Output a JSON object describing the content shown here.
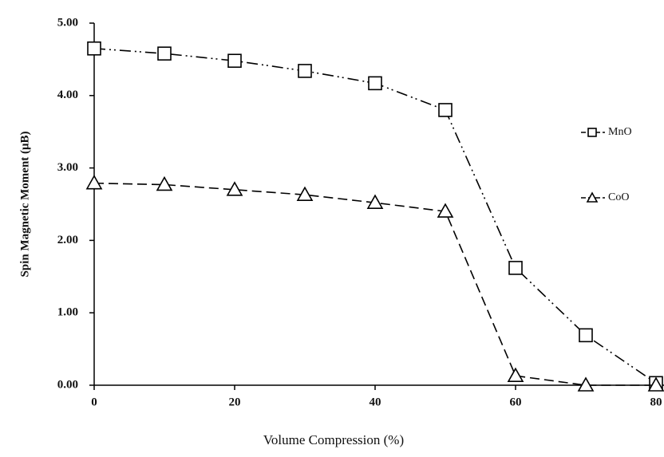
{
  "chart_data": {
    "type": "line",
    "x_label": "Volume Compression (%)",
    "y_label": "Spin Magnetic Moment (μB)",
    "x": [
      0,
      10,
      20,
      30,
      40,
      50,
      60,
      70,
      80
    ],
    "series": [
      {
        "name": "MnO",
        "color": "#000000",
        "marker": "square",
        "dash": "14 5 2 4 2 5",
        "values": [
          4.65,
          4.58,
          4.48,
          4.34,
          4.17,
          3.8,
          1.62,
          0.69,
          0.03
        ]
      },
      {
        "name": "CoO",
        "color": "#000000",
        "marker": "triangle",
        "dash": "12 6",
        "values": [
          2.79,
          2.77,
          2.7,
          2.63,
          2.52,
          2.4,
          0.13,
          0.0,
          0.0
        ]
      }
    ],
    "xlim": [
      0,
      80
    ],
    "xticks": [
      0,
      20,
      40,
      60,
      80
    ],
    "ylim": [
      0,
      5
    ],
    "yticks": [
      {
        "value": 0,
        "label": "0.00"
      },
      {
        "value": 1,
        "label": "1.00"
      },
      {
        "value": 2,
        "label": "2.00"
      },
      {
        "value": 3,
        "label": "3.00"
      },
      {
        "value": 4,
        "label": "4.00"
      },
      {
        "value": 5,
        "label": "5.00"
      }
    ],
    "legend": "right",
    "grid": false
  }
}
